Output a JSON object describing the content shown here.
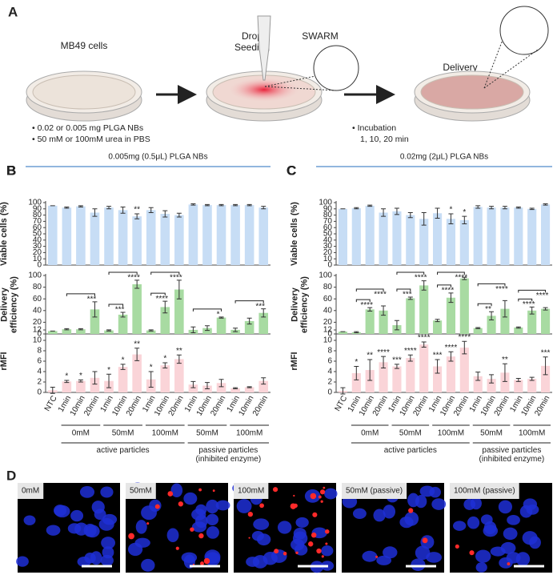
{
  "panel_a": {
    "letter": "A",
    "step_1": "MB49 cells",
    "step_2": "Drop Seeding",
    "step_3": "SWARM",
    "step_4": "Delivery",
    "bullets_left": [
      "• 0.02 or 0.005 mg PLGA NBs",
      "• 50 mM or 100mM urea in PBS"
    ],
    "bullets_right": [
      "• Incubation",
      "1, 10, 20 min"
    ]
  },
  "chart_data": [
    {
      "type": "bar",
      "panel": "B",
      "title": "0.005mg (0.5μL) PLGA NBs",
      "ylabel": "Viable cells (%)",
      "color": "#c7ddf5",
      "values": [
        95,
        92,
        94,
        84,
        92,
        88,
        78,
        88,
        82,
        80,
        97,
        96,
        96,
        96,
        96,
        92
      ],
      "errors": [
        0,
        1,
        1,
        6,
        2,
        5,
        4,
        4,
        5,
        3,
        1,
        1,
        1,
        1,
        1,
        2
      ],
      "significance": [
        null,
        null,
        null,
        null,
        null,
        null,
        "**",
        null,
        null,
        null,
        null,
        null,
        null,
        null,
        null,
        null
      ],
      "ylim": [
        0,
        100
      ],
      "yticks": [
        0,
        10,
        20,
        30,
        40,
        50,
        60,
        70,
        80,
        90,
        100
      ]
    },
    {
      "type": "bar",
      "panel": "B",
      "ylabel": "Delivery efficiency (%)",
      "color": "#a8dba2",
      "values": [
        5,
        8,
        8,
        42,
        6,
        33,
        85,
        6,
        46,
        76,
        7,
        10,
        28,
        7,
        22,
        36
      ],
      "errors": [
        0,
        1,
        1,
        13,
        1,
        4,
        7,
        1,
        10,
        16,
        5,
        4,
        1,
        3,
        5,
        7
      ],
      "comparisons": [
        {
          "from": 1,
          "to": 3,
          "label": "***"
        },
        {
          "from": 4,
          "to": 5,
          "label": "***"
        },
        {
          "from": 4,
          "to": 6,
          "label": "****"
        },
        {
          "from": 7,
          "to": 8,
          "label": "****"
        },
        {
          "from": 7,
          "to": 9,
          "label": "****"
        },
        {
          "from": 10,
          "to": 12,
          "label": "*"
        },
        {
          "from": 13,
          "to": 15,
          "label": "***"
        }
      ],
      "ylim": [
        0,
        100
      ],
      "yticks": [
        0,
        20,
        40,
        60,
        80,
        100
      ]
    },
    {
      "type": "bar",
      "panel": "B",
      "ylabel": "rMFI",
      "color": "#fad4d8",
      "categories": [
        "NTC",
        "1min",
        "10min",
        "20min",
        "1min",
        "10min",
        "20min",
        "1min",
        "10min",
        "20min",
        "1min",
        "10min",
        "20min",
        "1min",
        "10min",
        "20min"
      ],
      "group_labels": [
        "0mM",
        "50mM",
        "100mM",
        "50mM",
        "100mM"
      ],
      "super_group_labels": [
        "active particles",
        "passive particles (inhibited enzyme)"
      ],
      "values": [
        0.4,
        2.1,
        2.2,
        2.8,
        2.2,
        4.9,
        7.3,
        2.5,
        5.2,
        6.4,
        1.5,
        1.3,
        1.8,
        0.8,
        1.0,
        2.2
      ],
      "errors": [
        0.6,
        0.2,
        0.2,
        1.2,
        1.3,
        0.5,
        1.2,
        1.5,
        0.5,
        0.8,
        0.6,
        0.6,
        0.7,
        0.1,
        0.1,
        0.6
      ],
      "significance": [
        null,
        "*",
        "*",
        null,
        "*",
        "*",
        "**",
        "*",
        "*",
        "**",
        null,
        null,
        null,
        null,
        null,
        null
      ],
      "ylim": [
        0,
        12
      ],
      "yticks": [
        0,
        2,
        4,
        6,
        8,
        10,
        12
      ]
    },
    {
      "type": "bar",
      "panel": "C",
      "title": "0.02mg (2μL) PLGA NBs",
      "ylabel": "Viable cells (%)",
      "color": "#c7ddf5",
      "values": [
        90,
        91,
        95,
        84,
        86,
        80,
        74,
        83,
        74,
        72,
        93,
        92,
        92,
        92,
        90,
        97
      ],
      "errors": [
        0,
        1,
        1,
        6,
        5,
        4,
        10,
        8,
        8,
        6,
        2,
        2,
        2,
        1,
        1,
        1
      ],
      "significance": [
        null,
        null,
        null,
        null,
        null,
        null,
        null,
        null,
        "*",
        "*",
        null,
        null,
        null,
        null,
        null,
        null
      ],
      "ylim": [
        0,
        100
      ],
      "yticks": [
        0,
        10,
        20,
        30,
        40,
        50,
        60,
        70,
        80,
        90,
        100
      ]
    },
    {
      "type": "bar",
      "panel": "C",
      "ylabel": "Delivery efficiency (%)",
      "color": "#a8dba2",
      "values": [
        4,
        3,
        42,
        40,
        15,
        61,
        83,
        23,
        62,
        95,
        10,
        31,
        43,
        11,
        40,
        43
      ],
      "errors": [
        0,
        1,
        3,
        8,
        8,
        2,
        8,
        2,
        8,
        2,
        1,
        7,
        14,
        1,
        6,
        2
      ],
      "comparisons": [
        {
          "from": 1,
          "to": 2,
          "label": "****"
        },
        {
          "from": 1,
          "to": 3,
          "label": "****"
        },
        {
          "from": 4,
          "to": 5,
          "label": "***"
        },
        {
          "from": 4,
          "to": 6,
          "label": "****"
        },
        {
          "from": 7,
          "to": 8,
          "label": "****"
        },
        {
          "from": 7,
          "to": 9,
          "label": "****"
        },
        {
          "from": 10,
          "to": 11,
          "label": "**"
        },
        {
          "from": 10,
          "to": 12,
          "label": "****"
        },
        {
          "from": 13,
          "to": 14,
          "label": "****"
        },
        {
          "from": 13,
          "to": 15,
          "label": "****"
        }
      ],
      "ylim": [
        0,
        100
      ],
      "yticks": [
        0,
        20,
        40,
        60,
        80,
        100
      ]
    },
    {
      "type": "bar",
      "panel": "C",
      "ylabel": "rMFI",
      "color": "#fad4d8",
      "categories": [
        "NTC",
        "1min",
        "10min",
        "20min",
        "1min",
        "10min",
        "20min",
        "1min",
        "10min",
        "20min",
        "1min",
        "10min",
        "20min",
        "1min",
        "10min",
        "20min"
      ],
      "group_labels": [
        "0mM",
        "50mM",
        "100mM",
        "50mM",
        "100mM"
      ],
      "super_group_labels": [
        "active particles",
        "passive particles (inhibited enzyme)"
      ],
      "values": [
        0.3,
        3.7,
        4.3,
        5.8,
        5.0,
        6.6,
        9.2,
        5.0,
        6.9,
        8.6,
        3.1,
        2.6,
        3.8,
        2.4,
        2.6,
        5.1
      ],
      "errors": [
        0.6,
        1.3,
        2.0,
        1.1,
        0.4,
        0.6,
        0.5,
        1.3,
        0.9,
        1.2,
        0.8,
        0.8,
        1.7,
        0.3,
        0.3,
        1.7
      ],
      "significance": [
        null,
        "*",
        "**",
        "****",
        "***",
        "****",
        "****",
        "***",
        "****",
        "****",
        null,
        null,
        "**",
        null,
        null,
        "***"
      ],
      "ylim": [
        0,
        12
      ],
      "yticks": [
        0,
        2,
        4,
        6,
        8,
        10,
        12
      ]
    }
  ],
  "panel_d": {
    "letter": "D",
    "images": [
      "0mM",
      "50mM",
      "100mM",
      "50mM (passive)",
      "100mM (passive)"
    ]
  }
}
